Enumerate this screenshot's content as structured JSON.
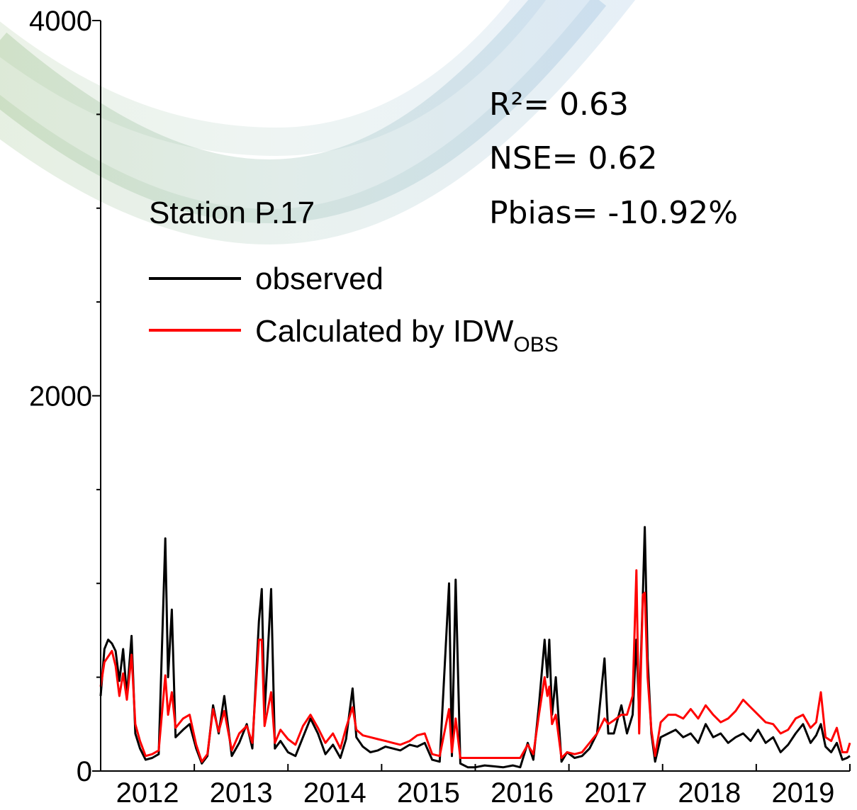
{
  "chart_data": {
    "type": "line",
    "station": "Station P.17",
    "annotations": [
      "R²= 0.63",
      "NSE= 0.62",
      "Pbias= -10.92%"
    ],
    "xlim": [
      2012,
      2020
    ],
    "xticks": [
      {
        "value": 2012.5,
        "label": "2012"
      },
      {
        "value": 2013.5,
        "label": "2013"
      },
      {
        "value": 2014.5,
        "label": "2014"
      },
      {
        "value": 2015.5,
        "label": "2015"
      },
      {
        "value": 2016.5,
        "label": "2016"
      },
      {
        "value": 2017.5,
        "label": "2017"
      },
      {
        "value": 2018.5,
        "label": "2018"
      },
      {
        "value": 2019.5,
        "label": "2019"
      }
    ],
    "x_tick_marks": [
      2012,
      2013,
      2014,
      2015,
      2016,
      2017,
      2018,
      2019,
      2020
    ],
    "ylim": [
      0,
      4000
    ],
    "yticks": [
      0,
      2000,
      4000
    ],
    "y_minor_ticks": [
      500,
      1000,
      1500,
      2500,
      3000,
      3500
    ],
    "x": [
      2012.0,
      2012.04,
      2012.08,
      2012.12,
      2012.16,
      2012.2,
      2012.24,
      2012.28,
      2012.33,
      2012.37,
      2012.42,
      2012.48,
      2012.55,
      2012.62,
      2012.69,
      2012.72,
      2012.76,
      2012.8,
      2012.88,
      2012.95,
      2013.02,
      2013.08,
      2013.14,
      2013.2,
      2013.26,
      2013.32,
      2013.4,
      2013.48,
      2013.56,
      2013.62,
      2013.69,
      2013.72,
      2013.75,
      2013.82,
      2013.86,
      2013.92,
      2014.0,
      2014.08,
      2014.16,
      2014.24,
      2014.32,
      2014.4,
      2014.48,
      2014.56,
      2014.62,
      2014.69,
      2014.73,
      2014.8,
      2014.88,
      2014.96,
      2015.04,
      2015.12,
      2015.2,
      2015.3,
      2015.38,
      2015.46,
      2015.54,
      2015.62,
      2015.72,
      2015.75,
      2015.79,
      2015.84,
      2015.92,
      2016.0,
      2016.1,
      2016.2,
      2016.3,
      2016.4,
      2016.48,
      2016.56,
      2016.62,
      2016.68,
      2016.74,
      2016.77,
      2016.79,
      2016.82,
      2016.86,
      2016.92,
      2016.98,
      2017.06,
      2017.14,
      2017.22,
      2017.3,
      2017.38,
      2017.42,
      2017.48,
      2017.56,
      2017.62,
      2017.68,
      2017.72,
      2017.75,
      2017.79,
      2017.81,
      2017.84,
      2017.88,
      2017.92,
      2017.98,
      2018.06,
      2018.14,
      2018.22,
      2018.3,
      2018.38,
      2018.46,
      2018.54,
      2018.62,
      2018.7,
      2018.78,
      2018.86,
      2018.94,
      2019.02,
      2019.1,
      2019.18,
      2019.26,
      2019.34,
      2019.42,
      2019.5,
      2019.58,
      2019.64,
      2019.69,
      2019.74,
      2019.8,
      2019.86,
      2019.92,
      2019.97,
      2020.0
    ],
    "series": [
      {
        "name": "observed",
        "color": "#000000",
        "values": [
          400,
          650,
          700,
          680,
          640,
          480,
          650,
          400,
          720,
          200,
          120,
          60,
          70,
          90,
          1240,
          500,
          860,
          180,
          220,
          250,
          120,
          40,
          80,
          350,
          200,
          400,
          80,
          150,
          250,
          120,
          800,
          970,
          300,
          970,
          120,
          160,
          100,
          80,
          180,
          280,
          200,
          90,
          140,
          70,
          170,
          440,
          180,
          130,
          100,
          110,
          130,
          120,
          110,
          140,
          130,
          150,
          60,
          50,
          1000,
          80,
          1020,
          40,
          20,
          20,
          30,
          25,
          20,
          30,
          20,
          150,
          60,
          350,
          700,
          500,
          700,
          300,
          500,
          50,
          100,
          70,
          80,
          120,
          200,
          600,
          200,
          200,
          350,
          200,
          300,
          700,
          300,
          950,
          1300,
          600,
          200,
          50,
          180,
          200,
          220,
          180,
          200,
          150,
          250,
          180,
          200,
          150,
          180,
          200,
          160,
          220,
          150,
          180,
          100,
          140,
          200,
          250,
          150,
          190,
          250,
          130,
          100,
          150,
          60,
          70,
          80
        ]
      },
      {
        "name": "Calculated by IDW",
        "name_subscript": "OBS",
        "color": "#ff0000",
        "values": [
          450,
          580,
          610,
          640,
          560,
          400,
          520,
          380,
          620,
          250,
          160,
          80,
          90,
          110,
          510,
          300,
          420,
          230,
          280,
          300,
          140,
          50,
          90,
          330,
          210,
          320,
          110,
          200,
          240,
          150,
          700,
          700,
          240,
          420,
          150,
          220,
          170,
          140,
          240,
          300,
          230,
          150,
          200,
          120,
          230,
          340,
          220,
          190,
          180,
          170,
          160,
          150,
          140,
          160,
          190,
          200,
          90,
          80,
          330,
          100,
          280,
          70,
          70,
          70,
          70,
          70,
          70,
          70,
          70,
          140,
          90,
          300,
          500,
          400,
          450,
          250,
          300,
          70,
          100,
          90,
          100,
          150,
          200,
          280,
          250,
          270,
          300,
          300,
          400,
          1070,
          200,
          940,
          950,
          500,
          220,
          80,
          260,
          300,
          300,
          280,
          330,
          280,
          350,
          300,
          260,
          280,
          320,
          380,
          340,
          300,
          260,
          250,
          200,
          220,
          280,
          300,
          230,
          260,
          420,
          180,
          160,
          230,
          100,
          100,
          150
        ]
      }
    ]
  }
}
